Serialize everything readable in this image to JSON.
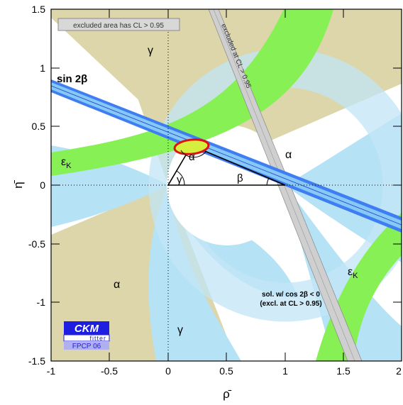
{
  "chart_data": {
    "type": "area",
    "xlabel": "ρ̄",
    "ylabel": "η̄",
    "xlim": [
      -1,
      2
    ],
    "ylim": [
      -1.5,
      1.5
    ],
    "x_ticks": [
      "-1",
      "-0.5",
      "0",
      "0.5",
      "1",
      "1.5",
      "2"
    ],
    "y_ticks": [
      "1.5",
      "1",
      "0.5",
      "0",
      "-0.5",
      "-1",
      "-1.5"
    ],
    "notes": {
      "excluded": "excluded area has CL > 0.95",
      "excluded_at": "excluded at CL > 0.95",
      "sol_line1": "sol. w/ cos 2β < 0",
      "sol_line2": "(excl. at CL > 0.95)"
    },
    "labels": {
      "sin2b": "sin 2β",
      "gamma": "γ",
      "alpha": "α",
      "beta": "β",
      "epsk": "ε",
      "epsk_sub": "K"
    },
    "logo": {
      "ckm": "CKM",
      "fitter": "fitter",
      "conf": "FPCP 06"
    },
    "triangle": {
      "apex_rho": 0.2,
      "apex_eta": 0.34
    },
    "sin2b_angle_deg": 21.6,
    "colors": {
      "gamma": "#dcd6aa",
      "alpha": "#b6e2f6",
      "epsk": "#86f054",
      "sin2b_outer": "#3f7df2",
      "sin2b_inner": "#86c8f6",
      "dmd_ring": "#c2e6f6",
      "ellipse": "#e01010",
      "ellipse_fill": "#d6ee3e",
      "logo_blue": "#1e1ee0"
    }
  }
}
